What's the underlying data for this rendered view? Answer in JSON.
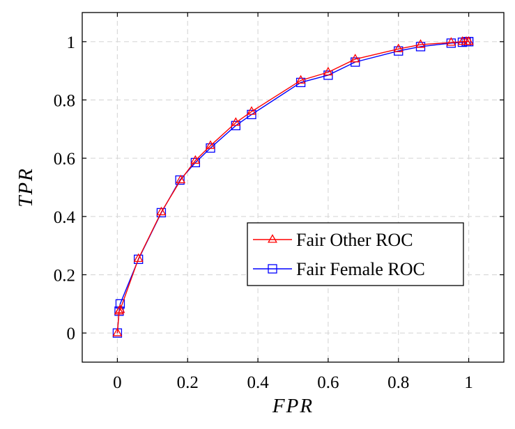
{
  "chart_data": {
    "type": "line",
    "xlabel": "FPR",
    "ylabel": "TPR",
    "xlim": [
      -0.1,
      1.1
    ],
    "ylim": [
      -0.1,
      1.1
    ],
    "xticks": [
      0,
      0.2,
      0.4,
      0.6,
      0.8,
      1
    ],
    "yticks": [
      0,
      0.2,
      0.4,
      0.6,
      0.8,
      1
    ],
    "xtick_labels": [
      "0",
      "0.2",
      "0.4",
      "0.6",
      "0.8",
      "1"
    ],
    "ytick_labels": [
      "0",
      "0.2",
      "0.4",
      "0.6",
      "0.8",
      "1"
    ],
    "grid": true,
    "legend_position": "center-right",
    "series": [
      {
        "name": "Fair Other ROC",
        "color": "#ff0000",
        "marker": "triangle",
        "x": [
          0,
          0.005,
          0.008,
          0.06,
          0.125,
          0.18,
          0.222,
          0.265,
          0.337,
          0.382,
          0.522,
          0.6,
          0.677,
          0.8,
          0.863,
          0.95,
          0.982,
          0.993,
          1,
          1
        ],
        "y": [
          0,
          0.075,
          0.08,
          0.255,
          0.415,
          0.525,
          0.592,
          0.643,
          0.722,
          0.76,
          0.867,
          0.895,
          0.94,
          0.975,
          0.99,
          0.997,
          1,
          1,
          1,
          1
        ]
      },
      {
        "name": "Fair Female ROC",
        "color": "#0000ff",
        "marker": "square",
        "x": [
          0,
          0.005,
          0.008,
          0.06,
          0.125,
          0.178,
          0.222,
          0.265,
          0.337,
          0.382,
          0.522,
          0.6,
          0.677,
          0.8,
          0.863,
          0.95,
          0.982,
          0.993,
          1,
          1
        ],
        "y": [
          0,
          0.075,
          0.1,
          0.253,
          0.413,
          0.525,
          0.585,
          0.635,
          0.712,
          0.75,
          0.86,
          0.885,
          0.93,
          0.968,
          0.983,
          0.995,
          0.998,
          1,
          1,
          1
        ]
      }
    ]
  }
}
